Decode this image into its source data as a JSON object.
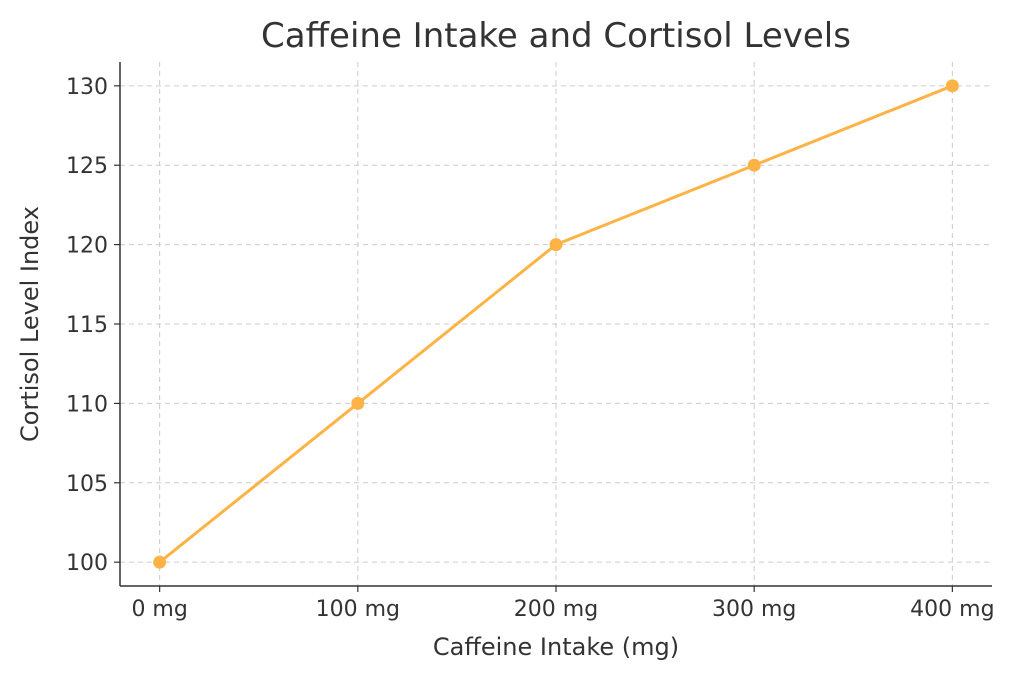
{
  "chart_data": {
    "type": "line",
    "title": "Caffeine Intake and Cortisol Levels",
    "xlabel": "Caffeine Intake (mg)",
    "ylabel": "Cortisol Level Index",
    "categories": [
      "0 mg",
      "100 mg",
      "200 mg",
      "300 mg",
      "400 mg"
    ],
    "x": [
      0,
      100,
      200,
      300,
      400
    ],
    "series": [
      {
        "name": "Cortisol Level Index",
        "values": [
          100,
          110,
          120,
          125,
          130
        ],
        "color": "#FFB347"
      }
    ],
    "yticks": [
      100,
      105,
      110,
      115,
      120,
      125,
      130
    ],
    "xlim": [
      -20,
      420
    ],
    "ylim": [
      98.5,
      131.5
    ],
    "grid": true
  }
}
